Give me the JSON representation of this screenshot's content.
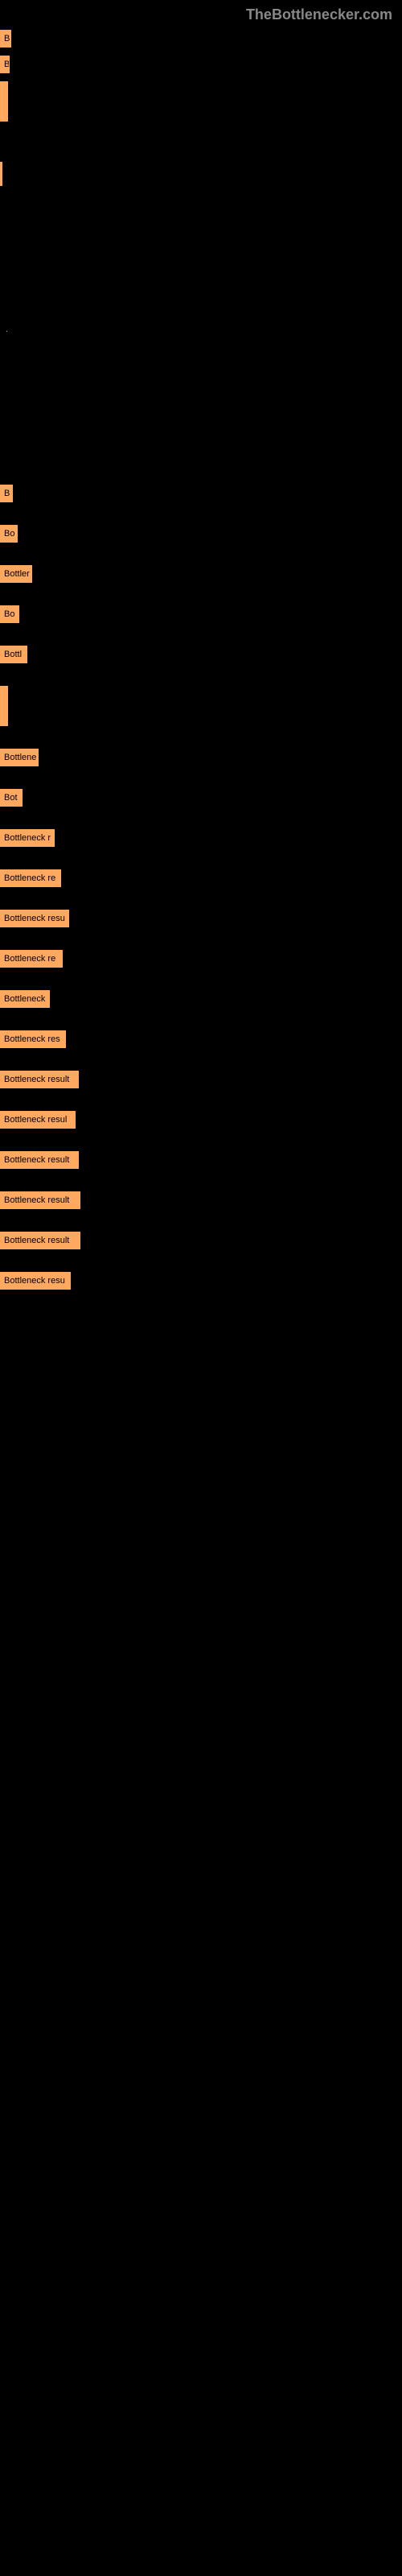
{
  "watermark": "TheBottlenecker.com",
  "section1": {
    "bars": [
      {
        "label": "B",
        "width": 14
      },
      {
        "label": "B",
        "width": 12
      },
      {
        "label": "",
        "width": 5,
        "tall": true
      }
    ]
  },
  "section2": {
    "bars": [
      {
        "label": "",
        "width": 3,
        "thin": true
      }
    ]
  },
  "dot_row": {
    "visible": true
  },
  "section3": {
    "bars": [
      {
        "label": "B",
        "width": 16
      },
      {
        "label": "Bo",
        "width": 22
      },
      {
        "label": "Bottler",
        "width": 40
      },
      {
        "label": "Bo",
        "width": 24
      },
      {
        "label": "Bottl",
        "width": 34
      },
      {
        "label": "",
        "width": 7,
        "tall": true
      },
      {
        "label": "Bottlene",
        "width": 48
      },
      {
        "label": "Bot",
        "width": 28
      },
      {
        "label": "Bottleneck r",
        "width": 68
      },
      {
        "label": "Bottleneck re",
        "width": 76
      },
      {
        "label": "Bottleneck resu",
        "width": 86
      },
      {
        "label": "Bottleneck re",
        "width": 78
      },
      {
        "label": "Bottleneck",
        "width": 62
      },
      {
        "label": "Bottleneck res",
        "width": 82
      },
      {
        "label": "Bottleneck result",
        "width": 98
      },
      {
        "label": "Bottleneck resul",
        "width": 94
      },
      {
        "label": "Bottleneck result",
        "width": 98
      },
      {
        "label": "Bottleneck result",
        "width": 100
      },
      {
        "label": "Bottleneck result",
        "width": 100
      },
      {
        "label": "Bottleneck resu",
        "width": 88
      }
    ],
    "bar_color": "#ffa860",
    "bg_color": "#000000"
  }
}
